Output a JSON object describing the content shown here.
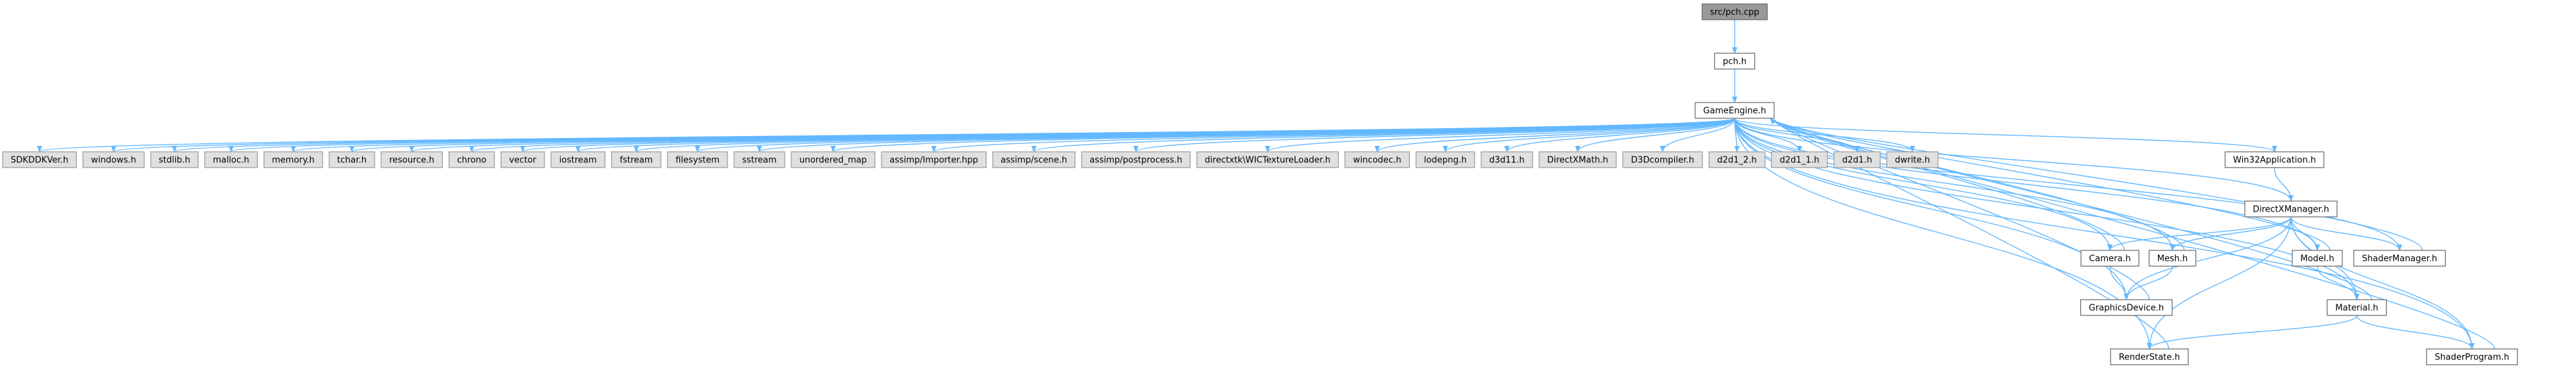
{
  "diagram": {
    "colors": {
      "root_fill": "#999999",
      "root_stroke": "#666666",
      "local_fill": "#ffffff",
      "local_stroke": "#666666",
      "system_fill": "#e0e0e0",
      "system_stroke": "#999999",
      "edge": "#63b8ff"
    },
    "nodes": [
      {
        "id": "pch_cpp",
        "label": "src/pch.cpp",
        "kind": "root"
      },
      {
        "id": "pch_h",
        "label": "pch.h",
        "kind": "local"
      },
      {
        "id": "GameEngine_h",
        "label": "GameEngine.h",
        "kind": "local"
      },
      {
        "id": "SDKDDKVer_h",
        "label": "SDKDDKVer.h",
        "kind": "system"
      },
      {
        "id": "windows_h",
        "label": "windows.h",
        "kind": "system"
      },
      {
        "id": "stdlib_h",
        "label": "stdlib.h",
        "kind": "system"
      },
      {
        "id": "malloc_h",
        "label": "malloc.h",
        "kind": "system"
      },
      {
        "id": "memory_h",
        "label": "memory.h",
        "kind": "system"
      },
      {
        "id": "tchar_h",
        "label": "tchar.h",
        "kind": "system"
      },
      {
        "id": "resource_h",
        "label": "resource.h",
        "kind": "system"
      },
      {
        "id": "chrono",
        "label": "chrono",
        "kind": "system"
      },
      {
        "id": "vector",
        "label": "vector",
        "kind": "system"
      },
      {
        "id": "iostream",
        "label": "iostream",
        "kind": "system"
      },
      {
        "id": "fstream",
        "label": "fstream",
        "kind": "system"
      },
      {
        "id": "filesystem",
        "label": "filesystem",
        "kind": "system"
      },
      {
        "id": "sstream",
        "label": "sstream",
        "kind": "system"
      },
      {
        "id": "unordered_map",
        "label": "unordered_map",
        "kind": "system"
      },
      {
        "id": "assimp_Importer",
        "label": "assimp/Importer.hpp",
        "kind": "system"
      },
      {
        "id": "assimp_scene",
        "label": "assimp/scene.h",
        "kind": "system"
      },
      {
        "id": "assimp_postprocess",
        "label": "assimp/postprocess.h",
        "kind": "system"
      },
      {
        "id": "directxtk_WIC",
        "label": "directxtk\\WICTextureLoader.h",
        "kind": "system"
      },
      {
        "id": "wincodec_h",
        "label": "wincodec.h",
        "kind": "system"
      },
      {
        "id": "lodepng_h",
        "label": "lodepng.h",
        "kind": "system"
      },
      {
        "id": "d3d11_h",
        "label": "d3d11.h",
        "kind": "system"
      },
      {
        "id": "DirectXMath_h",
        "label": "DirectXMath.h",
        "kind": "system"
      },
      {
        "id": "D3Dcompiler_h",
        "label": "D3Dcompiler.h",
        "kind": "system"
      },
      {
        "id": "d2d1_2_h",
        "label": "d2d1_2.h",
        "kind": "system"
      },
      {
        "id": "d2d1_1_h",
        "label": "d2d1_1.h",
        "kind": "system"
      },
      {
        "id": "d2d1_h",
        "label": "d2d1.h",
        "kind": "system"
      },
      {
        "id": "dwrite_h",
        "label": "dwrite.h",
        "kind": "system"
      },
      {
        "id": "Win32Application_h",
        "label": "Win32Application.h",
        "kind": "local"
      },
      {
        "id": "DirectXManager_h",
        "label": "DirectXManager.h",
        "kind": "local"
      },
      {
        "id": "Camera_h",
        "label": "Camera.h",
        "kind": "local"
      },
      {
        "id": "Mesh_h",
        "label": "Mesh.h",
        "kind": "local"
      },
      {
        "id": "Model_h",
        "label": "Model.h",
        "kind": "local"
      },
      {
        "id": "ShaderManager_h",
        "label": "ShaderManager.h",
        "kind": "local"
      },
      {
        "id": "GraphicsDevice_h",
        "label": "GraphicsDevice.h",
        "kind": "local"
      },
      {
        "id": "Material_h",
        "label": "Material.h",
        "kind": "local"
      },
      {
        "id": "RenderState_h",
        "label": "RenderState.h",
        "kind": "local"
      },
      {
        "id": "ShaderProgram_h",
        "label": "ShaderProgram.h",
        "kind": "local"
      }
    ],
    "edges": [
      [
        "pch_cpp",
        "pch_h"
      ],
      [
        "pch_h",
        "GameEngine_h"
      ],
      [
        "GameEngine_h",
        "SDKDDKVer_h"
      ],
      [
        "GameEngine_h",
        "windows_h"
      ],
      [
        "GameEngine_h",
        "stdlib_h"
      ],
      [
        "GameEngine_h",
        "malloc_h"
      ],
      [
        "GameEngine_h",
        "memory_h"
      ],
      [
        "GameEngine_h",
        "tchar_h"
      ],
      [
        "GameEngine_h",
        "resource_h"
      ],
      [
        "GameEngine_h",
        "chrono"
      ],
      [
        "GameEngine_h",
        "vector"
      ],
      [
        "GameEngine_h",
        "iostream"
      ],
      [
        "GameEngine_h",
        "fstream"
      ],
      [
        "GameEngine_h",
        "filesystem"
      ],
      [
        "GameEngine_h",
        "sstream"
      ],
      [
        "GameEngine_h",
        "unordered_map"
      ],
      [
        "GameEngine_h",
        "assimp_Importer"
      ],
      [
        "GameEngine_h",
        "assimp_scene"
      ],
      [
        "GameEngine_h",
        "assimp_postprocess"
      ],
      [
        "GameEngine_h",
        "directxtk_WIC"
      ],
      [
        "GameEngine_h",
        "wincodec_h"
      ],
      [
        "GameEngine_h",
        "lodepng_h"
      ],
      [
        "GameEngine_h",
        "d3d11_h"
      ],
      [
        "GameEngine_h",
        "DirectXMath_h"
      ],
      [
        "GameEngine_h",
        "D3Dcompiler_h"
      ],
      [
        "GameEngine_h",
        "d2d1_2_h"
      ],
      [
        "GameEngine_h",
        "d2d1_1_h"
      ],
      [
        "GameEngine_h",
        "d2d1_h"
      ],
      [
        "GameEngine_h",
        "dwrite_h"
      ],
      [
        "GameEngine_h",
        "Win32Application_h"
      ],
      [
        "GameEngine_h",
        "DirectXManager_h"
      ],
      [
        "GameEngine_h",
        "Camera_h"
      ],
      [
        "GameEngine_h",
        "Mesh_h"
      ],
      [
        "GameEngine_h",
        "Model_h"
      ],
      [
        "GameEngine_h",
        "ShaderManager_h"
      ],
      [
        "GameEngine_h",
        "GraphicsDevice_h"
      ],
      [
        "GameEngine_h",
        "Material_h"
      ],
      [
        "GameEngine_h",
        "RenderState_h"
      ],
      [
        "GameEngine_h",
        "ShaderProgram_h"
      ],
      [
        "Win32Application_h",
        "DirectXManager_h"
      ],
      [
        "DirectXManager_h",
        "Camera_h"
      ],
      [
        "DirectXManager_h",
        "Mesh_h"
      ],
      [
        "DirectXManager_h",
        "Model_h"
      ],
      [
        "DirectXManager_h",
        "ShaderManager_h"
      ],
      [
        "DirectXManager_h",
        "GraphicsDevice_h"
      ],
      [
        "DirectXManager_h",
        "Material_h"
      ],
      [
        "DirectXManager_h",
        "RenderState_h"
      ],
      [
        "DirectXManager_h",
        "ShaderProgram_h"
      ],
      [
        "Camera_h",
        "GameEngine_h"
      ],
      [
        "Camera_h",
        "GraphicsDevice_h"
      ],
      [
        "Mesh_h",
        "GameEngine_h"
      ],
      [
        "Mesh_h",
        "GraphicsDevice_h"
      ],
      [
        "Model_h",
        "GameEngine_h"
      ],
      [
        "Model_h",
        "Material_h"
      ],
      [
        "ShaderManager_h",
        "GameEngine_h"
      ],
      [
        "GraphicsDevice_h",
        "GameEngine_h"
      ],
      [
        "Material_h",
        "GameEngine_h"
      ],
      [
        "Material_h",
        "RenderState_h"
      ],
      [
        "Material_h",
        "ShaderProgram_h"
      ],
      [
        "RenderState_h",
        "GameEngine_h"
      ],
      [
        "ShaderProgram_h",
        "GameEngine_h"
      ]
    ]
  }
}
